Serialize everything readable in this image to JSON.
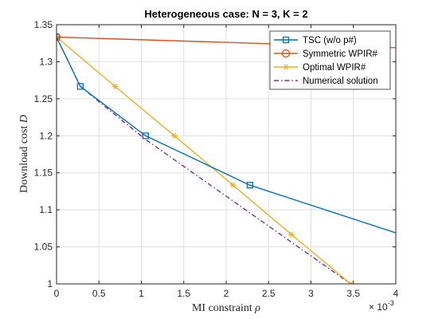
{
  "chart_data": {
    "type": "line",
    "title": "Heterogeneous case: N = 3, K = 2",
    "xlabel_text": "MI constraint",
    "xlabel_symbol": "ρ",
    "ylabel_text": "Download cost",
    "ylabel_symbol": "D",
    "x_exponent_base": "× 10",
    "x_exponent_power": "-3",
    "xlim": [
      0,
      4
    ],
    "ylim": [
      1,
      1.35
    ],
    "xticks": [
      0,
      0.5,
      1,
      1.5,
      2,
      2.5,
      3,
      3.5,
      4
    ],
    "xtick_labels": [
      "0",
      "0.5",
      "1",
      "1.5",
      "2",
      "2.5",
      "3",
      "3.5",
      "4"
    ],
    "yticks": [
      1,
      1.05,
      1.1,
      1.15,
      1.2,
      1.25,
      1.3,
      1.35
    ],
    "ytick_labels": [
      "1",
      "1.05",
      "1.1",
      "1.15",
      "1.2",
      "1.25",
      "1.3",
      "1.35"
    ],
    "grid": true,
    "legend_position": "top-right",
    "series": [
      {
        "name": "TSC (w/o p#)",
        "color": "#0072BD",
        "marker": "square",
        "linestyle": "solid",
        "x": [
          0,
          0.28,
          1.05,
          2.28,
          4.0
        ],
        "y": [
          1.3333,
          1.2667,
          1.2,
          1.1333,
          1.069
        ],
        "marker_x": [
          0,
          0.28,
          1.05,
          2.28
        ],
        "marker_y": [
          1.3333,
          1.2667,
          1.2,
          1.1333
        ]
      },
      {
        "name": "Symmetric WPIR#",
        "color": "#D95319",
        "marker": "circle",
        "linestyle": "solid",
        "x": [
          0,
          4.0
        ],
        "y": [
          1.3333,
          1.319
        ],
        "marker_x": [
          0
        ],
        "marker_y": [
          1.3333
        ]
      },
      {
        "name": "Optimal WPIR#",
        "color": "#EDB120",
        "marker": "asterisk",
        "linestyle": "solid",
        "x": [
          0,
          0.69,
          1.39,
          2.08,
          2.77,
          3.47
        ],
        "y": [
          1.3333,
          1.2667,
          1.2,
          1.1333,
          1.0667,
          1.0
        ],
        "marker_x": [
          0,
          0.69,
          1.39,
          2.08,
          2.77,
          3.47
        ],
        "marker_y": [
          1.3333,
          1.2667,
          1.2,
          1.1333,
          1.0667,
          1.0
        ]
      },
      {
        "name": "Numerical solution",
        "color": "#7E2F8E",
        "marker": "none",
        "linestyle": "dashdot",
        "x": [
          0,
          0.28,
          1.05,
          3.47
        ],
        "y": [
          1.3333,
          1.2667,
          1.195,
          1.0
        ],
        "marker_x": [],
        "marker_y": []
      }
    ]
  }
}
